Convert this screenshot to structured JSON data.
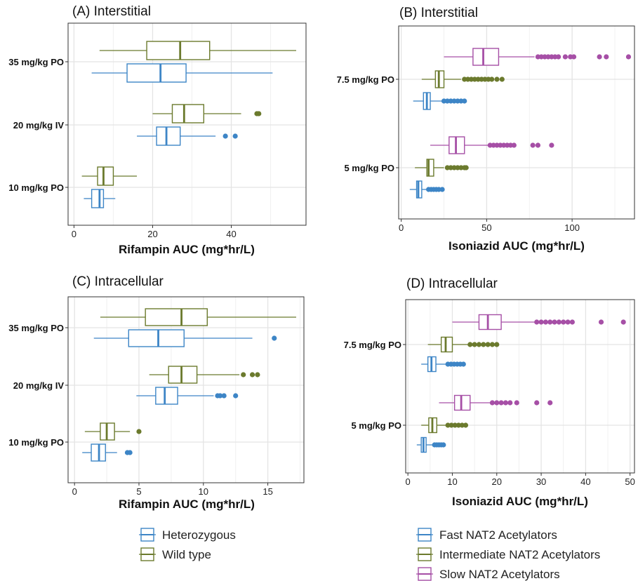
{
  "colors": {
    "Fast": "#3d85c6",
    "Intermediate": "#6b7a2d",
    "Slow": "#a64fa6",
    "Heterozygous": "#3d85c6",
    "Wild type": "#6b7a2d"
  },
  "legends": [
    {
      "id": "rifampin",
      "entries": [
        {
          "label": "Heterozygous",
          "color": "#3d85c6"
        },
        {
          "label": "Wild type",
          "color": "#6b7a2d"
        }
      ]
    },
    {
      "id": "isoniazid",
      "entries": [
        {
          "label": "Fast NAT2 Acetylators",
          "color": "#3d85c6"
        },
        {
          "label": "Intermediate NAT2 Acetylators",
          "color": "#6b7a2d"
        },
        {
          "label": "Slow NAT2 Acetylators",
          "color": "#a64fa6"
        }
      ]
    }
  ],
  "chart_data": [
    {
      "type": "boxplot",
      "title": "(A) Interstitial",
      "xlabel": "Rifampin AUC (mg*hr/L)",
      "xlim": [
        -1.5,
        59
      ],
      "xticks": [
        0,
        20,
        40
      ],
      "categories": [
        "35 mg/kg PO",
        "20 mg/kg IV",
        "10 mg/kg PO"
      ],
      "groups": [
        "Heterozygous",
        "Wild type"
      ],
      "boxes": [
        {
          "category": "35 mg/kg PO",
          "group": "Wild type",
          "stats": [
            6.5,
            18.5,
            27,
            34.5,
            56.5
          ],
          "outliers": []
        },
        {
          "category": "35 mg/kg PO",
          "group": "Heterozygous",
          "stats": [
            4.5,
            13.5,
            22,
            28.5,
            50.5
          ],
          "outliers": []
        },
        {
          "category": "20 mg/kg IV",
          "group": "Wild type",
          "stats": [
            20,
            25,
            28,
            33,
            42.5
          ],
          "outliers": [
            46.5,
            47
          ]
        },
        {
          "category": "20 mg/kg IV",
          "group": "Heterozygous",
          "stats": [
            16,
            21,
            23.5,
            27,
            36
          ],
          "outliers": [
            38.5,
            41
          ]
        },
        {
          "category": "10 mg/kg PO",
          "group": "Wild type",
          "stats": [
            2,
            6,
            7.5,
            10,
            16
          ],
          "outliers": []
        },
        {
          "category": "10 mg/kg PO",
          "group": "Heterozygous",
          "stats": [
            2.5,
            4.5,
            6.5,
            7.5,
            10.5
          ],
          "outliers": []
        }
      ]
    },
    {
      "type": "boxplot",
      "title": "(B) Interstitial",
      "xlabel": "Isoniazid AUC (mg*hr/L)",
      "xlim": [
        -1.5,
        136.5
      ],
      "xticks": [
        0,
        50,
        100
      ],
      "categories": [
        "7.5 mg/kg PO",
        "5 mg/kg PO"
      ],
      "groups": [
        "Fast NAT2 Acetylators",
        "Intermediate NAT2 Acetylators",
        "Slow NAT2 Acetylators"
      ],
      "boxes": [
        {
          "category": "7.5 mg/kg PO",
          "group": "Slow NAT2 Acetylators",
          "stats": [
            25,
            42,
            48,
            57,
            78
          ],
          "outliers": [
            80,
            82,
            84,
            86,
            88,
            90,
            92,
            96,
            99,
            101,
            116,
            120,
            133
          ]
        },
        {
          "category": "7.5 mg/kg PO",
          "group": "Intermediate NAT2 Acetylators",
          "stats": [
            12,
            20,
            22,
            25,
            35
          ],
          "outliers": [
            37,
            39,
            41,
            43,
            45,
            47,
            49,
            51,
            53,
            56,
            59
          ]
        },
        {
          "category": "7.5 mg/kg PO",
          "group": "Fast NAT2 Acetylators",
          "stats": [
            7,
            13,
            15,
            17,
            24
          ],
          "outliers": [
            25,
            27,
            29,
            31,
            33,
            35,
            37
          ]
        },
        {
          "category": "5 mg/kg PO",
          "group": "Slow NAT2 Acetylators",
          "stats": [
            17,
            28,
            32,
            37,
            51
          ],
          "outliers": [
            52,
            54,
            56,
            58,
            60,
            62,
            64,
            66,
            77,
            80,
            88
          ]
        },
        {
          "category": "5 mg/kg PO",
          "group": "Intermediate NAT2 Acetylators",
          "stats": [
            8,
            15,
            16,
            19,
            25
          ],
          "outliers": [
            27,
            29,
            31,
            33,
            35,
            37,
            38
          ]
        },
        {
          "category": "5 mg/kg PO",
          "group": "Fast NAT2 Acetylators",
          "stats": [
            5,
            9,
            10,
            12,
            15
          ],
          "outliers": [
            16,
            17.5,
            19,
            20.5,
            22,
            24
          ]
        }
      ]
    },
    {
      "type": "boxplot",
      "title": "(C) Intracellular",
      "xlabel": "Rifampin AUC (mg*hr/L)",
      "xlim": [
        -0.5,
        17.8
      ],
      "xticks": [
        0,
        5,
        10,
        15
      ],
      "categories": [
        "35 mg/kg PO",
        "20 mg/kg IV",
        "10 mg/kg PO"
      ],
      "groups": [
        "Heterozygous",
        "Wild type"
      ],
      "boxes": [
        {
          "category": "35 mg/kg PO",
          "group": "Wild type",
          "stats": [
            2,
            5.5,
            8.3,
            10.3,
            17.2
          ],
          "outliers": []
        },
        {
          "category": "35 mg/kg PO",
          "group": "Heterozygous",
          "stats": [
            1.5,
            4.2,
            6.5,
            8.5,
            13.8
          ],
          "outliers": [
            15.5
          ]
        },
        {
          "category": "20 mg/kg IV",
          "group": "Wild type",
          "stats": [
            5.8,
            7.3,
            8.3,
            9.5,
            12.8
          ],
          "outliers": [
            13.1,
            13.8,
            14.2
          ]
        },
        {
          "category": "20 mg/kg IV",
          "group": "Heterozygous",
          "stats": [
            4.8,
            6.3,
            7,
            8,
            10.8
          ],
          "outliers": [
            11.1,
            11.3,
            11.6,
            12.5
          ]
        },
        {
          "category": "10 mg/kg PO",
          "group": "Wild type",
          "stats": [
            0.8,
            2,
            2.5,
            3.1,
            4.3
          ],
          "outliers": [
            5
          ]
        },
        {
          "category": "10 mg/kg PO",
          "group": "Heterozygous",
          "stats": [
            0.6,
            1.3,
            1.9,
            2.4,
            3.3
          ],
          "outliers": [
            4.1,
            4.3
          ]
        }
      ]
    },
    {
      "type": "boxplot",
      "title": "(D) Intracellular",
      "xlabel": "Isoniazid AUC (mg*hr/L)",
      "xlim": [
        -0.5,
        51
      ],
      "xticks": [
        0,
        10,
        20,
        30,
        40,
        50
      ],
      "categories": [
        "7.5 mg/kg PO",
        "5 mg/kg PO"
      ],
      "groups": [
        "Fast NAT2 Acetylators",
        "Intermediate NAT2 Acetylators",
        "Slow NAT2 Acetylators"
      ],
      "boxes": [
        {
          "category": "7.5 mg/kg PO",
          "group": "Slow NAT2 Acetylators",
          "stats": [
            10,
            16,
            18,
            21,
            28.5
          ],
          "outliers": [
            29,
            30,
            31,
            32,
            33,
            34,
            35,
            36,
            37,
            43.5,
            48.5
          ]
        },
        {
          "category": "7.5 mg/kg PO",
          "group": "Intermediate NAT2 Acetylators",
          "stats": [
            4.5,
            7.5,
            8.5,
            10,
            13.5
          ],
          "outliers": [
            14,
            15,
            16,
            17,
            18,
            19,
            20
          ]
        },
        {
          "category": "7.5 mg/kg PO",
          "group": "Fast NAT2 Acetylators",
          "stats": [
            3,
            4.5,
            5.3,
            6.3,
            8.5
          ],
          "outliers": [
            9,
            9.7,
            10.4,
            11.1,
            11.8,
            12.5
          ]
        },
        {
          "category": "5 mg/kg PO",
          "group": "Slow NAT2 Acetylators",
          "stats": [
            7,
            10.5,
            12,
            14,
            18.5
          ],
          "outliers": [
            19,
            20,
            21,
            22,
            23,
            24.5,
            29,
            32
          ]
        },
        {
          "category": "5 mg/kg PO",
          "group": "Intermediate NAT2 Acetylators",
          "stats": [
            3,
            4.7,
            5.5,
            6.5,
            8.5
          ],
          "outliers": [
            9,
            9.8,
            10.6,
            11.4,
            12.2,
            13
          ]
        },
        {
          "category": "5 mg/kg PO",
          "group": "Fast NAT2 Acetylators",
          "stats": [
            2,
            3,
            3.5,
            4.1,
            5.6
          ],
          "outliers": [
            6,
            6.5,
            7,
            7.5,
            8
          ]
        }
      ]
    }
  ]
}
